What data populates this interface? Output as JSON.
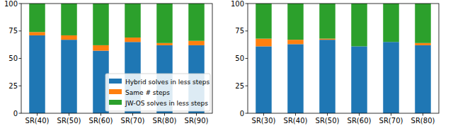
{
  "chart_data": [
    {
      "type": "bar",
      "stacked": true,
      "legend": "lower right",
      "categories": [
        "SR(40)",
        "SR(50)",
        "SR(60)",
        "SR(70)",
        "SR(80)",
        "SR(90)"
      ],
      "series": [
        {
          "name": "Hybrid solves in less steps",
          "color": "#1f77b4",
          "values": [
            71,
            67,
            57,
            65,
            62,
            62
          ]
        },
        {
          "name": "Same # steps",
          "color": "#ff7f0e",
          "values": [
            3,
            4,
            5,
            4,
            2,
            4
          ]
        },
        {
          "name": "JW-OS solves in less steps",
          "color": "#2ca02c",
          "values": [
            26,
            29,
            38,
            31,
            36,
            34
          ]
        }
      ],
      "ylim": [
        0,
        100
      ],
      "yticks": [
        0,
        25,
        50,
        75,
        100
      ]
    },
    {
      "type": "bar",
      "stacked": true,
      "categories": [
        "SR(30)",
        "SR(40)",
        "SR(50)",
        "SR(60)",
        "SR(70)",
        "SR(80)"
      ],
      "series": [
        {
          "color": "#1f77b4",
          "values": [
            61,
            63,
            67,
            61,
            65,
            62
          ]
        },
        {
          "color": "#ff7f0e",
          "values": [
            7,
            4,
            1,
            0,
            0,
            2
          ]
        },
        {
          "color": "#2ca02c",
          "values": [
            32,
            33,
            32,
            39,
            35,
            36
          ]
        }
      ],
      "ylim": [
        0,
        100
      ],
      "yticks": [
        0,
        25,
        50,
        75,
        100
      ]
    }
  ]
}
